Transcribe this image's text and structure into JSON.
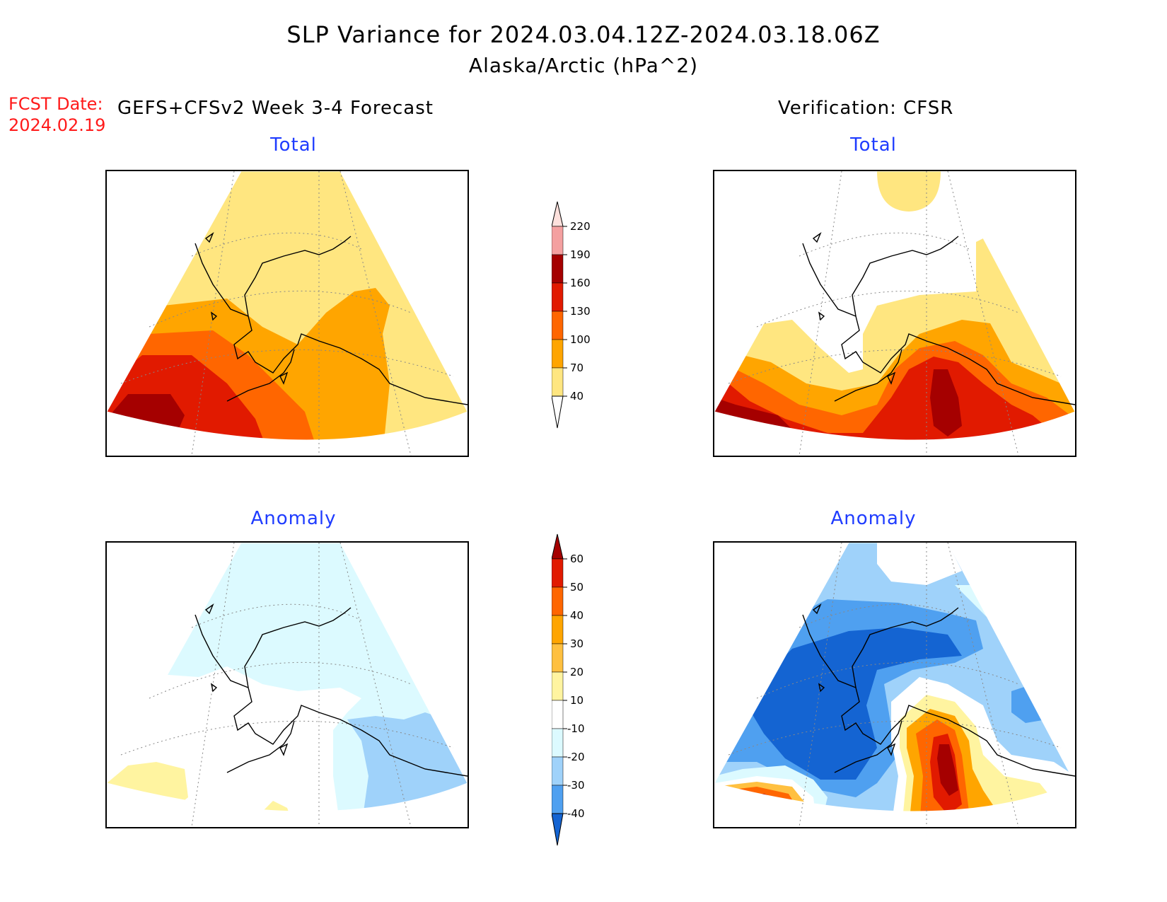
{
  "title": "SLP Variance for 2024.03.04.12Z-2024.03.18.06Z",
  "subtitle": "Alaska/Arctic (hPa^2)",
  "fcst_label": "FCST Date:",
  "fcst_date": "2024.02.19",
  "left_header": "GEFS+CFSv2 Week 3-4 Forecast",
  "right_header": "Verification: CFSR",
  "panels": {
    "top_left_title": "Total",
    "top_right_title": "Total",
    "bottom_left_title": "Anomaly",
    "bottom_right_title": "Anomaly"
  },
  "total_colorbar": {
    "labels": [
      "220",
      "190",
      "160",
      "130",
      "100",
      "70",
      "40"
    ],
    "colors": [
      "#fde0dc",
      "#f4a0a0",
      "#a50000",
      "#e11a00",
      "#ff6600",
      "#ffa500",
      "#ffe680"
    ]
  },
  "anomaly_colorbar": {
    "labels": [
      "60",
      "50",
      "40",
      "30",
      "20",
      "10",
      "-10",
      "-20",
      "-30",
      "-40"
    ],
    "top_colors": [
      "#a50000",
      "#e11a00",
      "#ff6600",
      "#ffa500",
      "#ffc040",
      "#fff4a0"
    ],
    "middle_color": "#ffffff",
    "bottom_colors": [
      "#dcfaff",
      "#9fd2fa",
      "#4fa0f0",
      "#1464d2"
    ]
  },
  "colors": {
    "title_blue": "#1f3cff",
    "fcst_red": "#ff1a1a"
  }
}
